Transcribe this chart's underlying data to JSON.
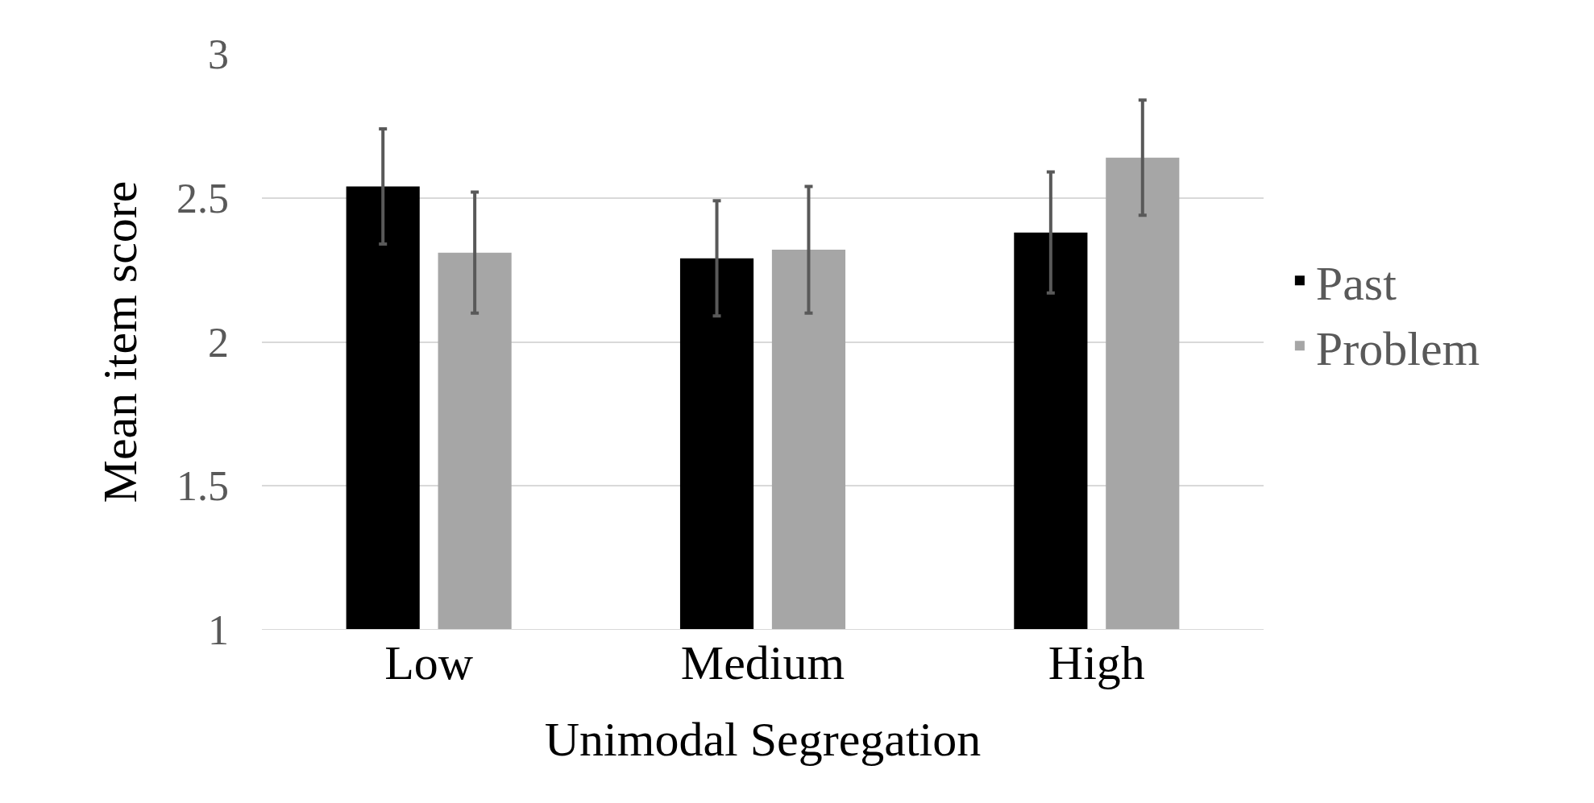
{
  "chart_data": {
    "type": "bar",
    "xlabel": "Unimodal Segregation",
    "ylabel": "Mean item score",
    "categories": [
      "Low",
      "Medium",
      "High"
    ],
    "series": [
      {
        "name": "Past",
        "color": "#000000",
        "values": [
          2.54,
          2.29,
          2.38
        ],
        "errors": [
          0.2,
          0.2,
          0.21
        ]
      },
      {
        "name": "Problem",
        "color": "#a6a6a6",
        "values": [
          2.31,
          2.32,
          2.64
        ],
        "errors": [
          0.21,
          0.22,
          0.2
        ]
      }
    ],
    "ylim": [
      1,
      3
    ],
    "yticks": [
      1,
      1.5,
      2,
      2.5,
      3
    ],
    "grid": "y",
    "legend": "right"
  }
}
